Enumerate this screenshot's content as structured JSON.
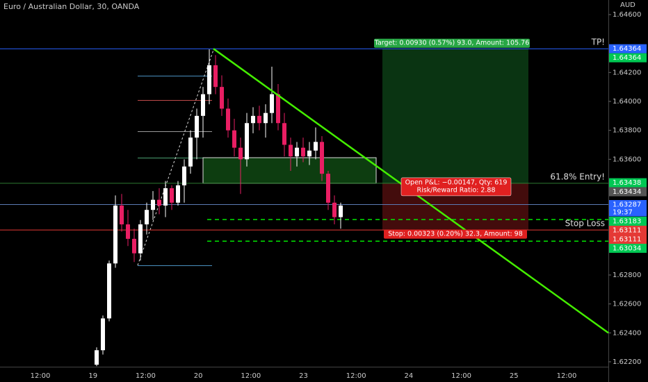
{
  "chart_data": {
    "type": "candlestick",
    "title": "Euro / Australian Dollar, 30, OANDA",
    "currency": "AUD",
    "ylim": [
      1.62166,
      1.64701
    ],
    "yticks": [
      {
        "value": 1.646,
        "label": "1.64600"
      },
      {
        "value": 1.642,
        "label": "1.64200"
      },
      {
        "value": 1.64,
        "label": "1.64000"
      },
      {
        "value": 1.638,
        "label": "1.63800"
      },
      {
        "value": 1.636,
        "label": "1.63600"
      },
      {
        "value": 1.628,
        "label": "1.62800"
      },
      {
        "value": 1.626,
        "label": "1.62600"
      },
      {
        "value": 1.624,
        "label": "1.62400"
      },
      {
        "value": 1.622,
        "label": "1.62200"
      }
    ],
    "categories": [
      "12:00",
      "19",
      "12:00",
      "20",
      "12:00",
      "23",
      "12:00",
      "24",
      "12:00",
      "25",
      "12:00"
    ],
    "up_color": "#ffffff",
    "down_color": "#e91e63",
    "open": [
      1.6218,
      1.6228,
      1.625,
      1.6288,
      1.6328,
      1.6315,
      1.6305,
      1.6295,
      1.6315,
      1.6325,
      1.6332,
      1.6328,
      1.634,
      1.633,
      1.6342,
      1.6355,
      1.6375,
      1.639,
      1.6405,
      1.6425,
      1.641,
      1.6395,
      1.638,
      1.6368,
      1.636,
      1.6385,
      1.639,
      1.6385,
      1.6392,
      1.6405,
      1.6385,
      1.637,
      1.6362,
      1.6368,
      1.6362,
      1.6366,
      1.6372,
      1.635,
      1.633,
      1.632
    ],
    "high": [
      1.623,
      1.6252,
      1.629,
      1.6335,
      1.6336,
      1.6325,
      1.6312,
      1.6318,
      1.633,
      1.6338,
      1.634,
      1.6345,
      1.6342,
      1.6345,
      1.636,
      1.638,
      1.6395,
      1.641,
      1.6436,
      1.6432,
      1.6418,
      1.6402,
      1.6388,
      1.6375,
      1.6392,
      1.6396,
      1.6397,
      1.6398,
      1.6424,
      1.6412,
      1.6392,
      1.6375,
      1.6372,
      1.6375,
      1.6372,
      1.6382,
      1.6376,
      1.6352,
      1.6335,
      1.633
    ],
    "low": [
      1.6217,
      1.6225,
      1.6248,
      1.6285,
      1.631,
      1.63,
      1.6289,
      1.629,
      1.6308,
      1.6318,
      1.6322,
      1.632,
      1.6325,
      1.6328,
      1.633,
      1.635,
      1.636,
      1.6375,
      1.6398,
      1.6405,
      1.639,
      1.6375,
      1.6362,
      1.6336,
      1.6355,
      1.6378,
      1.638,
      1.6375,
      1.6385,
      1.638,
      1.6362,
      1.6352,
      1.6355,
      1.6358,
      1.6356,
      1.636,
      1.6345,
      1.6325,
      1.6315,
      1.6312
    ],
    "close": [
      1.6228,
      1.625,
      1.6288,
      1.6328,
      1.6315,
      1.6305,
      1.6295,
      1.6315,
      1.6325,
      1.6332,
      1.6328,
      1.634,
      1.633,
      1.6342,
      1.6355,
      1.6375,
      1.639,
      1.6405,
      1.6425,
      1.641,
      1.6395,
      1.638,
      1.6368,
      1.636,
      1.6385,
      1.639,
      1.6385,
      1.6392,
      1.6405,
      1.6385,
      1.637,
      1.6362,
      1.6368,
      1.6362,
      1.6366,
      1.6372,
      1.635,
      1.633,
      1.632,
      1.6328
    ],
    "levels": [
      {
        "value": 1.64364,
        "color": "#2962ff"
      },
      {
        "value": 1.63434,
        "color": "#2e7d32"
      },
      {
        "value": 1.63287,
        "color": "#5b7bb5"
      },
      {
        "value": 1.63111,
        "color": "#e53935"
      }
    ],
    "dashed_levels": [
      {
        "value": 1.63183,
        "color": "#00e600"
      },
      {
        "value": 1.63034,
        "color": "#00e600"
      }
    ],
    "entry_zone": [
      1.63611,
      1.63434
    ],
    "trendline": [
      1.64364,
      1.624
    ],
    "position": {
      "target": 1.64364,
      "entry": 1.63434,
      "stop": 1.63111,
      "target_label": "Target: 0.00930 (0.57%) 93.0, Amount: 105.76",
      "pnl_label": "Open P&L: −0.00147, Qty: 619",
      "rr_label": "Risk/Reward Ratio: 2.88",
      "stop_label": "Stop: 0.00323 (0.20%) 32.3, Amount: 98"
    },
    "annotations": [
      {
        "text": "TP!",
        "value": 1.64364
      },
      {
        "text": "61.8% Entry!",
        "value": 1.63434
      },
      {
        "text": "Stop Loss",
        "value": 1.63111
      }
    ],
    "price_labels": [
      {
        "value": 1.64364,
        "label": "1.64364",
        "color": "#2962ff"
      },
      {
        "value": 1.64364,
        "label": "1.64364",
        "color": "#00c853"
      },
      {
        "value": 1.63438,
        "label": "1.63438",
        "color": "#00c853"
      },
      {
        "value": 1.63434,
        "label": "1.63434",
        "color": "#555555"
      },
      {
        "value": 1.63287,
        "label": "1.63287",
        "color": "#2962ff"
      },
      {
        "value": 1.63183,
        "label": "1.63183",
        "color": "#00c853"
      },
      {
        "value": 1.63111,
        "label": "1.63111",
        "color": "#e53935"
      },
      {
        "value": 1.63111,
        "label": "1.63111",
        "color": "#e53935"
      },
      {
        "value": 1.63034,
        "label": "1.63034",
        "color": "#00c853"
      }
    ],
    "countdown": "19:37"
  }
}
